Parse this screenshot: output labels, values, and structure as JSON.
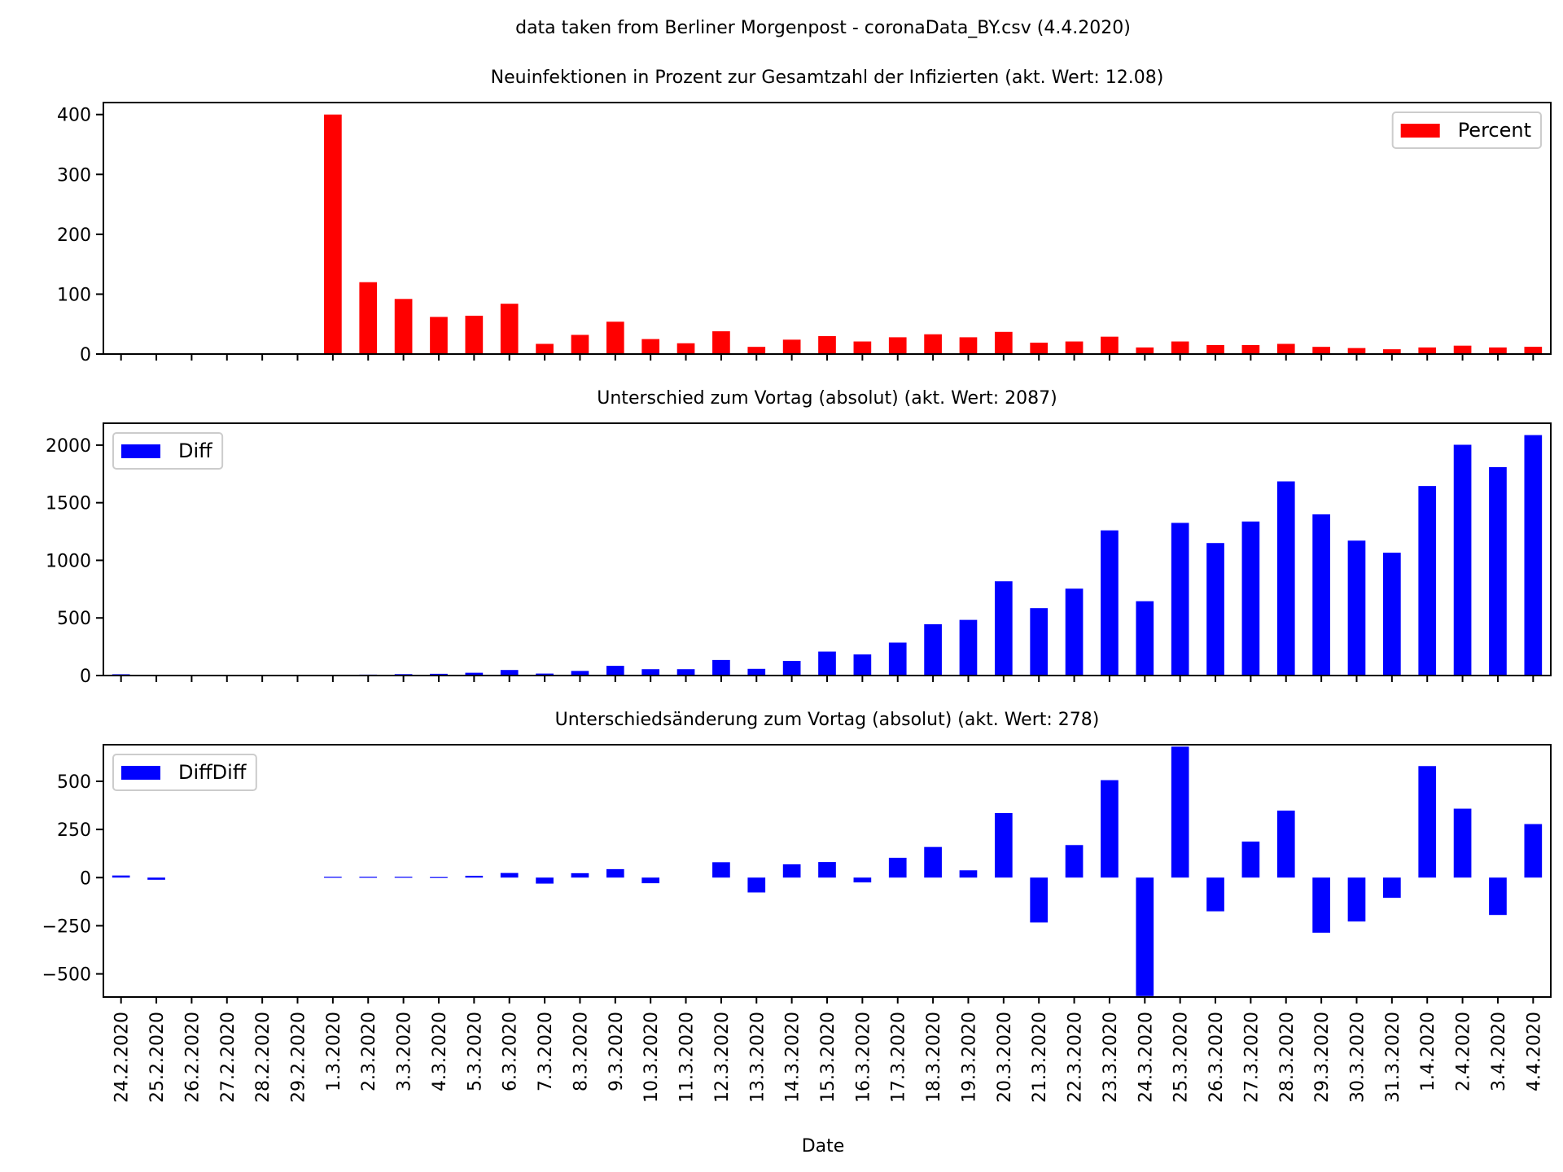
{
  "figure": {
    "suptitle": "data taken from Berliner Morgenpost - coronaData_BY.csv (4.4.2020)",
    "xlabel": "Date"
  },
  "chart_data": [
    {
      "type": "bar",
      "title": "Neuinfektionen in Prozent zur Gesamtzahl der Infizierten (akt. Wert: 12.08)",
      "legend": "Percent",
      "legend_position": "top-right",
      "color": "#ff0000",
      "ylim": [
        0,
        420
      ],
      "yticks": [
        0,
        100,
        200,
        300,
        400
      ],
      "categories": [
        "24.2.2020",
        "25.2.2020",
        "26.2.2020",
        "27.2.2020",
        "28.2.2020",
        "29.2.2020",
        "1.3.2020",
        "2.3.2020",
        "3.3.2020",
        "4.3.2020",
        "5.3.2020",
        "6.3.2020",
        "7.3.2020",
        "8.3.2020",
        "9.3.2020",
        "10.3.2020",
        "11.3.2020",
        "12.3.2020",
        "13.3.2020",
        "14.3.2020",
        "15.3.2020",
        "16.3.2020",
        "17.3.2020",
        "18.3.2020",
        "19.3.2020",
        "20.3.2020",
        "21.3.2020",
        "22.3.2020",
        "23.3.2020",
        "24.3.2020",
        "25.3.2020",
        "26.3.2020",
        "27.3.2020",
        "28.3.2020",
        "29.3.2020",
        "30.3.2020",
        "31.3.2020",
        "1.4.2020",
        "2.4.2020",
        "3.4.2020",
        "4.4.2020"
      ],
      "values": [
        0,
        0,
        0,
        0,
        0,
        0,
        400,
        120,
        92,
        62,
        64,
        84,
        17,
        32,
        54,
        25,
        18,
        38,
        12,
        24,
        30,
        21,
        28,
        33,
        28,
        37,
        19,
        21,
        29,
        11,
        21,
        15,
        15,
        17,
        12,
        10,
        8,
        11,
        14,
        11,
        12.08
      ]
    },
    {
      "type": "bar",
      "title": "Unterschied zum Vortag (absolut) (akt. Wert: 2087)",
      "legend": "Diff",
      "legend_position": "top-left",
      "color": "#0000ff",
      "ylim": [
        0,
        2190
      ],
      "yticks": [
        0,
        500,
        1000,
        1500,
        2000
      ],
      "categories": [
        "24.2.2020",
        "25.2.2020",
        "26.2.2020",
        "27.2.2020",
        "28.2.2020",
        "29.2.2020",
        "1.3.2020",
        "2.3.2020",
        "3.3.2020",
        "4.3.2020",
        "5.3.2020",
        "6.3.2020",
        "7.3.2020",
        "8.3.2020",
        "9.3.2020",
        "10.3.2020",
        "11.3.2020",
        "12.3.2020",
        "13.3.2020",
        "14.3.2020",
        "15.3.2020",
        "16.3.2020",
        "17.3.2020",
        "18.3.2020",
        "19.3.2020",
        "20.3.2020",
        "21.3.2020",
        "22.3.2020",
        "23.3.2020",
        "24.3.2020",
        "25.3.2020",
        "26.3.2020",
        "27.3.2020",
        "28.3.2020",
        "29.3.2020",
        "30.3.2020",
        "31.3.2020",
        "1.4.2020",
        "2.4.2020",
        "3.4.2020",
        "4.4.2020"
      ],
      "values": [
        11,
        0,
        0,
        0,
        0,
        0,
        4,
        8,
        12,
        15,
        24,
        48,
        17,
        40,
        84,
        55,
        55,
        135,
        58,
        127,
        208,
        183,
        286,
        445,
        483,
        818,
        585,
        754,
        1260,
        645,
        1325,
        1150,
        1337,
        1685,
        1399,
        1171,
        1066,
        1645,
        2003,
        1809,
        2087
      ]
    },
    {
      "type": "bar",
      "title": "Unterschiedsänderung zum Vortag (absolut) (akt. Wert: 278)",
      "legend": "DiffDiff",
      "legend_position": "top-left",
      "color": "#0000ff",
      "ylim": [
        -620,
        690
      ],
      "yticks": [
        -500,
        -250,
        0,
        250,
        500
      ],
      "ytick_labels": [
        "−500",
        "−250",
        "0",
        "250",
        "500"
      ],
      "categories": [
        "24.2.2020",
        "25.2.2020",
        "26.2.2020",
        "27.2.2020",
        "28.2.2020",
        "29.2.2020",
        "1.3.2020",
        "2.3.2020",
        "3.3.2020",
        "4.3.2020",
        "5.3.2020",
        "6.3.2020",
        "7.3.2020",
        "8.3.2020",
        "9.3.2020",
        "10.3.2020",
        "11.3.2020",
        "12.3.2020",
        "13.3.2020",
        "14.3.2020",
        "15.3.2020",
        "16.3.2020",
        "17.3.2020",
        "18.3.2020",
        "19.3.2020",
        "20.3.2020",
        "21.3.2020",
        "22.3.2020",
        "23.3.2020",
        "24.3.2020",
        "25.3.2020",
        "26.3.2020",
        "27.3.2020",
        "28.3.2020",
        "29.3.2020",
        "30.3.2020",
        "31.3.2020",
        "1.4.2020",
        "2.4.2020",
        "3.4.2020",
        "4.4.2020"
      ],
      "values": [
        11,
        -11,
        0,
        0,
        0,
        0,
        4,
        4,
        4,
        3,
        9,
        24,
        -31,
        23,
        44,
        -29,
        0,
        80,
        -77,
        69,
        81,
        -25,
        103,
        159,
        38,
        335,
        -233,
        169,
        506,
        -615,
        680,
        -175,
        187,
        348,
        -286,
        -228,
        -105,
        579,
        358,
        -194,
        278
      ]
    }
  ]
}
